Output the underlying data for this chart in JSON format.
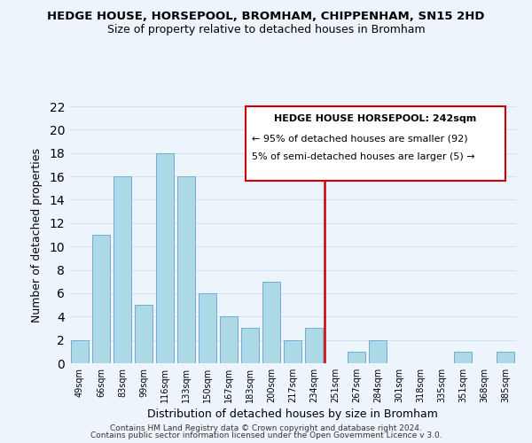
{
  "title": "HEDGE HOUSE, HORSEPOOL, BROMHAM, CHIPPENHAM, SN15 2HD",
  "subtitle": "Size of property relative to detached houses in Bromham",
  "xlabel": "Distribution of detached houses by size in Bromham",
  "ylabel": "Number of detached properties",
  "bar_labels": [
    "49sqm",
    "66sqm",
    "83sqm",
    "99sqm",
    "116sqm",
    "133sqm",
    "150sqm",
    "167sqm",
    "183sqm",
    "200sqm",
    "217sqm",
    "234sqm",
    "251sqm",
    "267sqm",
    "284sqm",
    "301sqm",
    "318sqm",
    "335sqm",
    "351sqm",
    "368sqm",
    "385sqm"
  ],
  "bar_values": [
    2,
    11,
    16,
    5,
    18,
    16,
    6,
    4,
    3,
    7,
    2,
    3,
    0,
    1,
    2,
    0,
    0,
    0,
    1,
    0,
    1
  ],
  "bar_color": "#add8e6",
  "bar_edge_color": "#6baed6",
  "grid_color": "#d0e4f0",
  "background_color": "#eef4fb",
  "vline_color": "#cc0000",
  "ylim": [
    0,
    22
  ],
  "yticks": [
    0,
    2,
    4,
    6,
    8,
    10,
    12,
    14,
    16,
    18,
    20,
    22
  ],
  "annotation_title": "HEDGE HOUSE HORSEPOOL: 242sqm",
  "annotation_line1": "← 95% of detached houses are smaller (92)",
  "annotation_line2": "5% of semi-detached houses are larger (5) →",
  "footer1": "Contains HM Land Registry data © Crown copyright and database right 2024.",
  "footer2": "Contains public sector information licensed under the Open Government Licence v 3.0."
}
